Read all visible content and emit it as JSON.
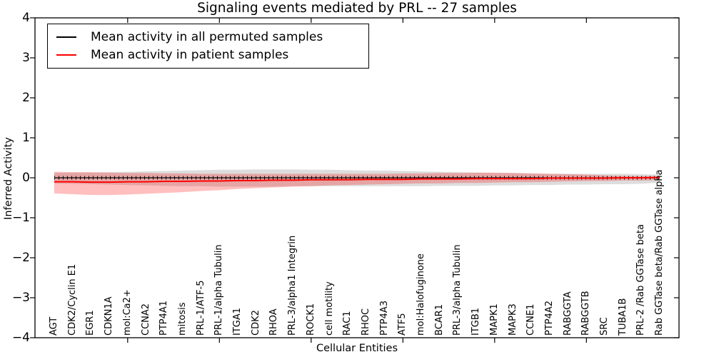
{
  "figure": {
    "title": "Signaling events mediated by PRL -- 27 samples"
  },
  "axes": {
    "xlabel": "Cellular Entities",
    "ylabel": "Inferred Activity",
    "ytick_labels": [
      "4",
      "3",
      "2",
      "1",
      "0",
      "−1",
      "−2",
      "−3",
      "−4"
    ]
  },
  "legend": {
    "items": [
      {
        "label": "Mean activity in all permuted samples",
        "color": "#000000"
      },
      {
        "label": "Mean activity in patient samples",
        "color": "#ff0000"
      }
    ]
  },
  "chart_data": {
    "type": "line",
    "title": "Signaling events mediated by PRL -- 27 samples",
    "xlabel": "Cellular Entities",
    "ylabel": "Inferred Activity",
    "ylim": [
      -4,
      4
    ],
    "yticks": [
      4,
      3,
      2,
      1,
      0,
      -1,
      -2,
      -3,
      -4
    ],
    "grid": false,
    "legend_position": "upper left",
    "categories": [
      "AGT",
      "CDK2/Cyclin E1",
      "EGR1",
      "CDKN1A",
      "mol:Ca2+",
      "CCNA2",
      "PTP4A1",
      "mitosis",
      "PRL-1/ATF-5",
      "PRL-1/alpha Tubulin",
      "ITGA1",
      "CDK2",
      "RHOA",
      "PRL-3/alpha1 Integrin",
      "ROCK1",
      "cell motility",
      "RAC1",
      "RHOC",
      "PTP4A3",
      "ATF5",
      "mol:Halofuginone",
      "BCAR1",
      "PRL-3/alpha Tubulin",
      "ITGB1",
      "MAPK1",
      "MAPK3",
      "CCNE1",
      "PTP4A2",
      "RABGGTA",
      "RABGGTB",
      "SRC",
      "TUBA1B",
      "PRL-2 /Rab GGTase beta",
      "Rab GGTase beta/Rab GGTase alpha"
    ],
    "series": [
      {
        "name": "Mean activity in all permuted samples",
        "color": "#000000",
        "marker": "|",
        "values": [
          0,
          0,
          0,
          0,
          0,
          0,
          0,
          0,
          0,
          0,
          0,
          0,
          0,
          0,
          0,
          0,
          0,
          0,
          0,
          0,
          0,
          0,
          0,
          0,
          0,
          0,
          0,
          0,
          0,
          0,
          0,
          0,
          0,
          0
        ]
      },
      {
        "name": "Mean activity in patient samples",
        "color": "#ff0000",
        "marker": null,
        "values": [
          -0.1,
          -0.1,
          -0.11,
          -0.11,
          -0.1,
          -0.1,
          -0.09,
          -0.09,
          -0.08,
          -0.08,
          -0.07,
          -0.07,
          -0.06,
          -0.06,
          -0.05,
          -0.05,
          -0.05,
          -0.04,
          -0.04,
          -0.04,
          -0.03,
          -0.03,
          -0.03,
          -0.02,
          -0.02,
          -0.02,
          -0.02,
          -0.01,
          -0.01,
          -0.01,
          -0.01,
          0.0,
          0.0,
          0.01
        ]
      }
    ],
    "bands": [
      {
        "name": "permuted-samples-range",
        "color": "#aaaaaa",
        "opacity": 0.4,
        "upper": [
          0.12,
          0.13,
          0.13,
          0.14,
          0.15,
          0.16,
          0.17,
          0.18,
          0.19,
          0.2,
          0.2,
          0.21,
          0.21,
          0.21,
          0.2,
          0.2,
          0.19,
          0.18,
          0.18,
          0.17,
          0.16,
          0.15,
          0.14,
          0.13,
          0.12,
          0.12,
          0.11,
          0.1,
          0.1,
          0.1,
          0.1,
          0.1,
          0.09,
          0.08
        ],
        "lower": [
          -0.14,
          -0.15,
          -0.16,
          -0.17,
          -0.18,
          -0.19,
          -0.2,
          -0.21,
          -0.21,
          -0.22,
          -0.22,
          -0.22,
          -0.22,
          -0.21,
          -0.21,
          -0.21,
          -0.21,
          -0.21,
          -0.21,
          -0.21,
          -0.21,
          -0.2,
          -0.2,
          -0.2,
          -0.19,
          -0.19,
          -0.18,
          -0.18,
          -0.17,
          -0.17,
          -0.16,
          -0.16,
          -0.15,
          -0.12
        ]
      },
      {
        "name": "patient-samples-range",
        "color": "#ff0000",
        "opacity": 0.25,
        "upper": [
          0.15,
          0.14,
          0.14,
          0.13,
          0.12,
          0.12,
          0.11,
          0.11,
          0.1,
          0.1,
          0.1,
          0.1,
          0.1,
          0.1,
          0.1,
          0.1,
          0.1,
          0.1,
          0.1,
          0.11,
          0.11,
          0.12,
          0.12,
          0.13,
          0.13,
          0.12,
          0.11,
          0.1,
          0.09,
          0.08,
          0.06,
          0.05,
          0.04,
          0.04
        ],
        "lower": [
          -0.39,
          -0.41,
          -0.43,
          -0.43,
          -0.42,
          -0.4,
          -0.38,
          -0.36,
          -0.33,
          -0.31,
          -0.28,
          -0.26,
          -0.24,
          -0.22,
          -0.21,
          -0.19,
          -0.18,
          -0.17,
          -0.16,
          -0.15,
          -0.14,
          -0.14,
          -0.13,
          -0.13,
          -0.12,
          -0.11,
          -0.11,
          -0.1,
          -0.09,
          -0.08,
          -0.08,
          -0.07,
          -0.07,
          -0.06
        ]
      }
    ]
  }
}
